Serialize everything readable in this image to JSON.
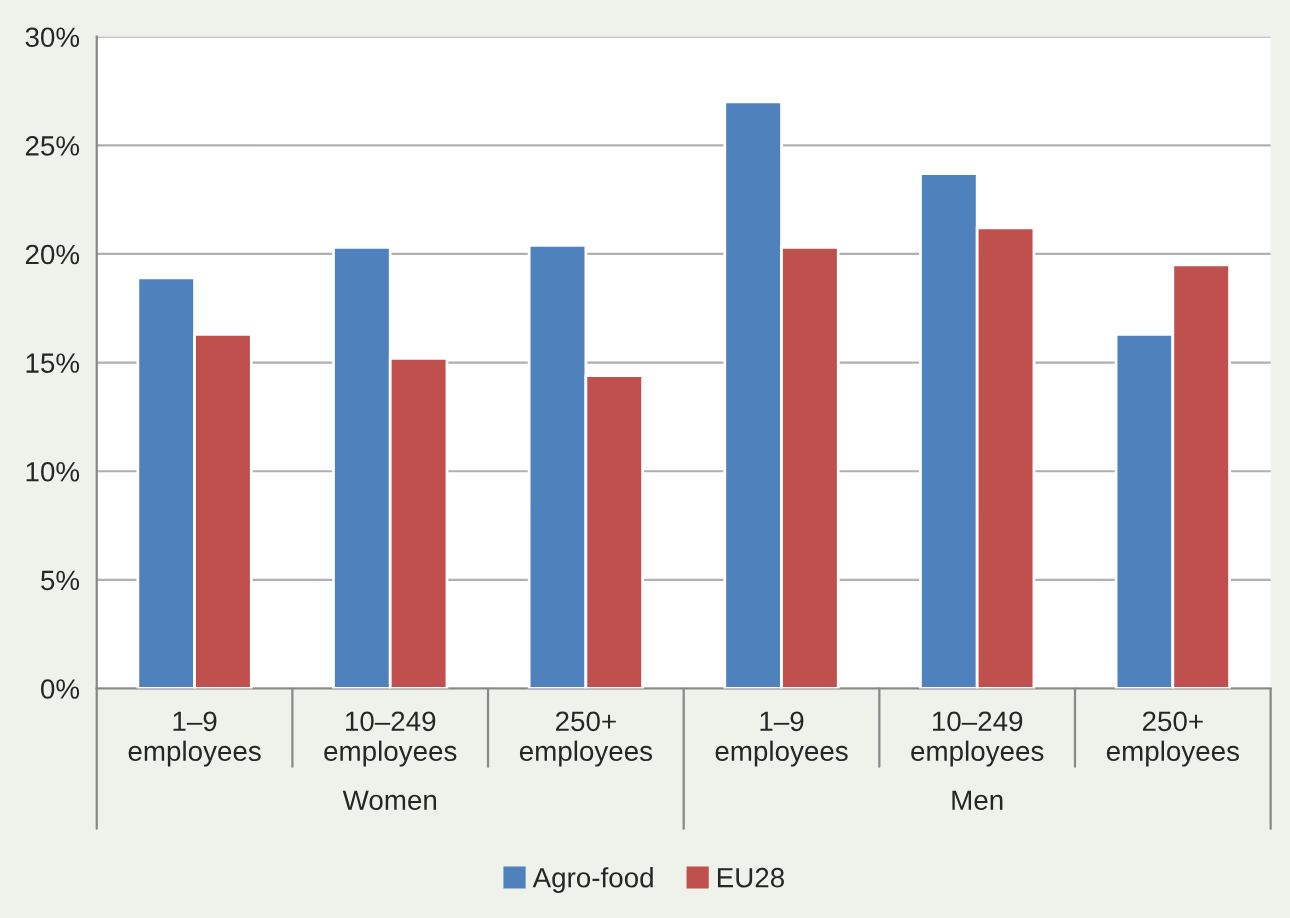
{
  "chart_data": {
    "type": "bar",
    "categories": [
      "1–9\nemployees",
      "10–249\nemployees",
      "250+\nemployees",
      "1–9\nemployees",
      "10–249\nemployees",
      "250+\nemployees"
    ],
    "series": [
      {
        "name": "Agro-food",
        "color": "#4f81bd",
        "values": [
          18.9,
          20.3,
          20.4,
          27.0,
          23.7,
          16.3
        ]
      },
      {
        "name": "EU28",
        "color": "#c0504d",
        "values": [
          16.3,
          15.2,
          14.4,
          20.3,
          21.2,
          19.5
        ]
      }
    ],
    "annotations": [
      "Women",
      "Men"
    ],
    "ylim": [
      0,
      30
    ],
    "yticks": [
      {
        "value": 0,
        "label": "0%"
      },
      {
        "value": 5,
        "label": "5%"
      },
      {
        "value": 10,
        "label": "10%"
      },
      {
        "value": 15,
        "label": "15%"
      },
      {
        "value": 20,
        "label": "20%"
      },
      {
        "value": 25,
        "label": "25%"
      },
      {
        "value": 30,
        "label": "30%"
      }
    ],
    "grid": "y",
    "legend": "bottom"
  }
}
